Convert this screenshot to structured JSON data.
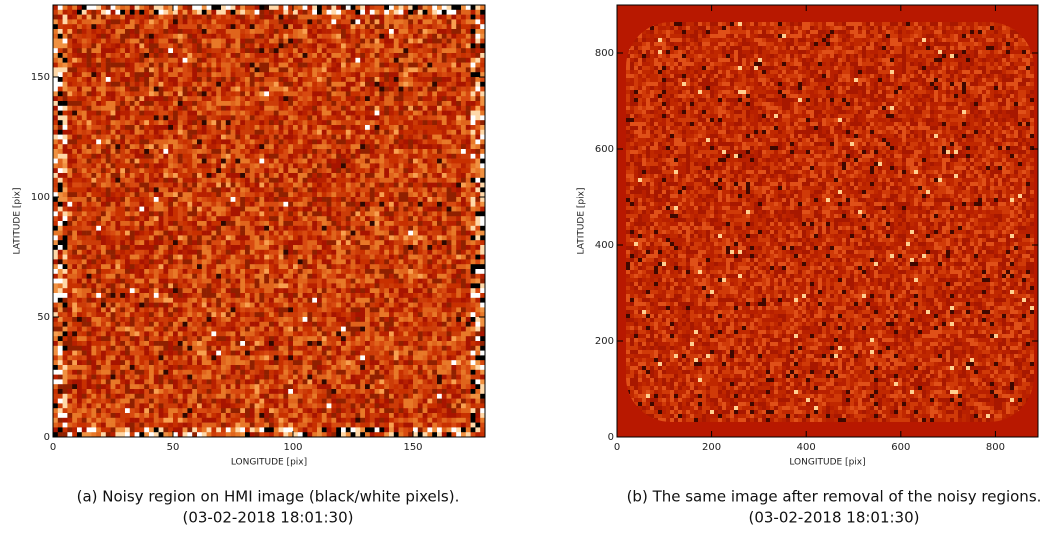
{
  "panels": [
    {
      "xlabel": "LONGITUDE [pix]",
      "ylabel": "LATITUDE [pix]",
      "xlim": [
        0,
        180
      ],
      "ylim": [
        0,
        180
      ],
      "xticks": [
        0,
        50,
        100,
        150
      ],
      "yticks": [
        0,
        50,
        100,
        150
      ],
      "caption": "(a) Noisy region on HMI image (black/white pixels).",
      "date": "(03-02-2018 18:01:30)"
    },
    {
      "xlabel": "LONGITUDE [pix]",
      "ylabel": "LATITUDE [pix]",
      "xlim": [
        0,
        890
      ],
      "ylim": [
        0,
        900
      ],
      "xticks": [
        0,
        200,
        400,
        600,
        800
      ],
      "yticks": [
        0,
        200,
        400,
        600,
        800
      ],
      "caption": "(b) The same image after removal of the noisy regions.",
      "date": "(03-02-2018 18:01:30)"
    }
  ]
}
